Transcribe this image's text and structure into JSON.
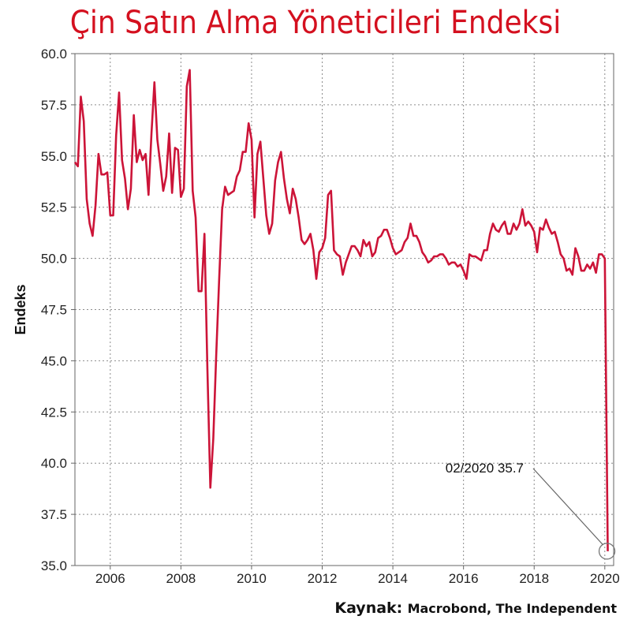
{
  "chart_data": {
    "type": "line",
    "title": "Çin Satın Alma Yöneticileri Endeksi",
    "ylabel": "Endeks",
    "xlabel": "",
    "ylim": [
      35.0,
      60.0
    ],
    "xlim": [
      "2005-01",
      "2020-04"
    ],
    "y_ticks": [
      "60.0",
      "57.5",
      "55.0",
      "52.5",
      "50.0",
      "47.5",
      "45.0",
      "42.5",
      "40.0",
      "37.5",
      "35.0"
    ],
    "x_ticks": [
      "2006",
      "2008",
      "2010",
      "2012",
      "2014",
      "2016",
      "2018",
      "2020"
    ],
    "grid": true,
    "series": [
      {
        "color": "#cc1438",
        "x": [
          "2005-01",
          "2005-02",
          "2005-03",
          "2005-04",
          "2005-05",
          "2005-06",
          "2005-07",
          "2005-08",
          "2005-09",
          "2005-10",
          "2005-11",
          "2005-12",
          "2006-01",
          "2006-02",
          "2006-03",
          "2006-04",
          "2006-05",
          "2006-06",
          "2006-07",
          "2006-08",
          "2006-09",
          "2006-10",
          "2006-11",
          "2006-12",
          "2007-01",
          "2007-02",
          "2007-03",
          "2007-04",
          "2007-05",
          "2007-06",
          "2007-07",
          "2007-08",
          "2007-09",
          "2007-10",
          "2007-11",
          "2007-12",
          "2008-01",
          "2008-02",
          "2008-03",
          "2008-04",
          "2008-05",
          "2008-06",
          "2008-07",
          "2008-08",
          "2008-09",
          "2008-10",
          "2008-11",
          "2008-12",
          "2009-01",
          "2009-02",
          "2009-03",
          "2009-04",
          "2009-05",
          "2009-06",
          "2009-07",
          "2009-08",
          "2009-09",
          "2009-10",
          "2009-11",
          "2009-12",
          "2010-01",
          "2010-02",
          "2010-03",
          "2010-04",
          "2010-05",
          "2010-06",
          "2010-07",
          "2010-08",
          "2010-09",
          "2010-10",
          "2010-11",
          "2010-12",
          "2011-01",
          "2011-02",
          "2011-03",
          "2011-04",
          "2011-05",
          "2011-06",
          "2011-07",
          "2011-08",
          "2011-09",
          "2011-10",
          "2011-11",
          "2011-12",
          "2012-01",
          "2012-02",
          "2012-03",
          "2012-04",
          "2012-05",
          "2012-06",
          "2012-07",
          "2012-08",
          "2012-09",
          "2012-10",
          "2012-11",
          "2012-12",
          "2013-01",
          "2013-02",
          "2013-03",
          "2013-04",
          "2013-05",
          "2013-06",
          "2013-07",
          "2013-08",
          "2013-09",
          "2013-10",
          "2013-11",
          "2013-12",
          "2014-01",
          "2014-02",
          "2014-03",
          "2014-04",
          "2014-05",
          "2014-06",
          "2014-07",
          "2014-08",
          "2014-09",
          "2014-10",
          "2014-11",
          "2014-12",
          "2015-01",
          "2015-02",
          "2015-03",
          "2015-04",
          "2015-05",
          "2015-06",
          "2015-07",
          "2015-08",
          "2015-09",
          "2015-10",
          "2015-11",
          "2015-12",
          "2016-01",
          "2016-02",
          "2016-03",
          "2016-04",
          "2016-05",
          "2016-06",
          "2016-07",
          "2016-08",
          "2016-09",
          "2016-10",
          "2016-11",
          "2016-12",
          "2017-01",
          "2017-02",
          "2017-03",
          "2017-04",
          "2017-05",
          "2017-06",
          "2017-07",
          "2017-08",
          "2017-09",
          "2017-10",
          "2017-11",
          "2017-12",
          "2018-01",
          "2018-02",
          "2018-03",
          "2018-04",
          "2018-05",
          "2018-06",
          "2018-07",
          "2018-08",
          "2018-09",
          "2018-10",
          "2018-11",
          "2018-12",
          "2019-01",
          "2019-02",
          "2019-03",
          "2019-04",
          "2019-05",
          "2019-06",
          "2019-07",
          "2019-08",
          "2019-09",
          "2019-10",
          "2019-11",
          "2019-12",
          "2020-01",
          "2020-02"
        ],
        "values": [
          54.7,
          54.5,
          57.9,
          56.7,
          52.9,
          51.7,
          51.1,
          52.6,
          55.1,
          54.1,
          54.1,
          54.2,
          52.1,
          52.1,
          56.0,
          58.1,
          54.8,
          53.9,
          52.4,
          53.4,
          57.0,
          54.7,
          55.3,
          54.8,
          55.1,
          53.1,
          56.1,
          58.6,
          55.8,
          54.6,
          53.3,
          54.0,
          56.1,
          53.2,
          55.4,
          55.3,
          53.0,
          53.4,
          58.4,
          59.2,
          53.3,
          52.0,
          48.4,
          48.4,
          51.2,
          44.6,
          38.8,
          41.2,
          45.3,
          49.0,
          52.4,
          53.5,
          53.1,
          53.2,
          53.3,
          54.0,
          54.3,
          55.2,
          55.2,
          56.6,
          55.8,
          52.0,
          55.1,
          55.7,
          53.9,
          52.1,
          51.2,
          51.7,
          53.8,
          54.7,
          55.2,
          53.9,
          52.9,
          52.2,
          53.4,
          52.9,
          52.0,
          50.9,
          50.7,
          50.9,
          51.2,
          50.4,
          49.0,
          50.3,
          50.5,
          51.0,
          53.1,
          53.3,
          50.4,
          50.2,
          50.1,
          49.2,
          49.8,
          50.2,
          50.6,
          50.6,
          50.4,
          50.1,
          50.9,
          50.6,
          50.8,
          50.1,
          50.3,
          51.0,
          51.1,
          51.4,
          51.4,
          51.0,
          50.5,
          50.2,
          50.3,
          50.4,
          50.8,
          51.0,
          51.7,
          51.1,
          51.1,
          50.8,
          50.3,
          50.1,
          49.8,
          49.9,
          50.1,
          50.1,
          50.2,
          50.2,
          50.0,
          49.7,
          49.8,
          49.8,
          49.6,
          49.7,
          49.4,
          49.0,
          50.2,
          50.1,
          50.1,
          50.0,
          49.9,
          50.4,
          50.4,
          51.2,
          51.7,
          51.4,
          51.3,
          51.6,
          51.8,
          51.2,
          51.2,
          51.7,
          51.4,
          51.7,
          52.4,
          51.6,
          51.8,
          51.6,
          51.3,
          50.3,
          51.5,
          51.4,
          51.9,
          51.5,
          51.2,
          51.3,
          50.8,
          50.2,
          50.0,
          49.4,
          49.5,
          49.2,
          50.5,
          50.1,
          49.4,
          49.4,
          49.7,
          49.5,
          49.8,
          49.3,
          50.2,
          50.2,
          50.0,
          35.7
        ]
      }
    ],
    "annotations": [
      {
        "text": "02/2020 35.7",
        "x": "2020-02",
        "y": 35.7
      }
    ]
  },
  "source": {
    "label": "Kaynak:",
    "text": "Macrobond, The Independent"
  },
  "colors": {
    "title": "#d4101f",
    "line": "#cc1438",
    "grid": "#8c8c8c"
  }
}
